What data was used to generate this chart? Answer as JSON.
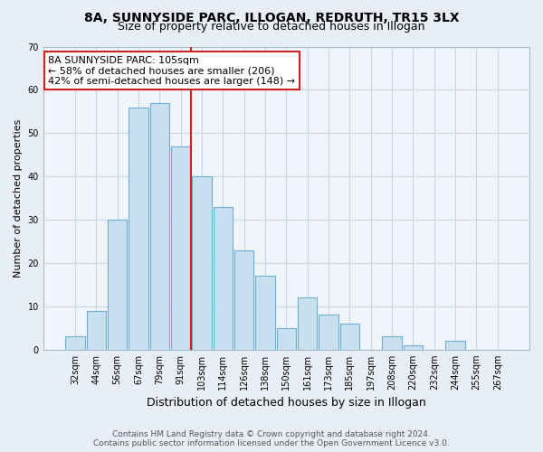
{
  "title": "8A, SUNNYSIDE PARC, ILLOGAN, REDRUTH, TR15 3LX",
  "subtitle": "Size of property relative to detached houses in Illogan",
  "xlabel": "Distribution of detached houses by size in Illogan",
  "ylabel": "Number of detached properties",
  "bar_labels": [
    "32sqm",
    "44sqm",
    "56sqm",
    "67sqm",
    "79sqm",
    "91sqm",
    "103sqm",
    "114sqm",
    "126sqm",
    "138sqm",
    "150sqm",
    "161sqm",
    "173sqm",
    "185sqm",
    "197sqm",
    "208sqm",
    "220sqm",
    "232sqm",
    "244sqm",
    "255sqm",
    "267sqm"
  ],
  "bar_values": [
    3,
    9,
    30,
    56,
    57,
    47,
    40,
    33,
    23,
    17,
    5,
    12,
    8,
    6,
    0,
    3,
    1,
    0,
    2,
    0,
    0
  ],
  "bar_color": "#c8dff0",
  "bar_edge_color": "#6eadd4",
  "vline_x_index": 6,
  "vline_color": "#cc2222",
  "ylim": [
    0,
    70
  ],
  "yticks": [
    0,
    10,
    20,
    30,
    40,
    50,
    60,
    70
  ],
  "annotation_text": "8A SUNNYSIDE PARC: 105sqm\n← 58% of detached houses are smaller (206)\n42% of semi-detached houses are larger (148) →",
  "annotation_box_facecolor": "#ffffff",
  "annotation_box_edgecolor": "#cc2222",
  "footer_line1": "Contains HM Land Registry data © Crown copyright and database right 2024.",
  "footer_line2": "Contains public sector information licensed under the Open Government Licence v3.0.",
  "bg_color": "#e8eef5",
  "plot_bg_color": "#f0f5fb",
  "grid_color": "#c5d5e8",
  "title_fontsize": 10,
  "subtitle_fontsize": 9,
  "xlabel_fontsize": 9,
  "ylabel_fontsize": 8,
  "tick_fontsize": 7,
  "annotation_fontsize": 8,
  "footer_fontsize": 6.5
}
